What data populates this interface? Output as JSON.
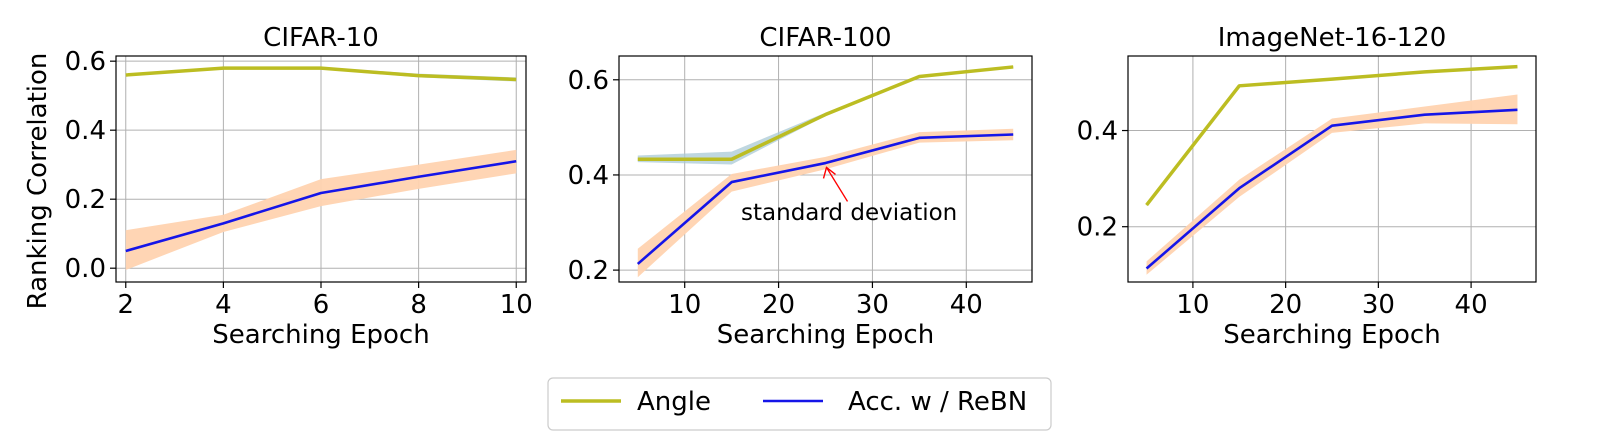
{
  "chart_data": [
    {
      "type": "line",
      "title": "CIFAR-10",
      "xlabel": "Searching Epoch",
      "ylabel": "Ranking Correlation",
      "xlim": [
        1.8,
        10.2
      ],
      "ylim": [
        -0.04,
        0.615
      ],
      "xticks": [
        2,
        4,
        6,
        8,
        10
      ],
      "yticks": [
        0.0,
        0.2,
        0.4,
        0.6
      ],
      "ytick_decimals": 1,
      "grid": true,
      "x": [
        2,
        4,
        6,
        8,
        10
      ],
      "series": [
        {
          "name": "Angle",
          "color": "#bcbd22",
          "values": [
            0.56,
            0.58,
            0.58,
            0.558,
            0.547
          ],
          "std_lower": [
            0.558,
            0.578,
            0.578,
            0.553,
            0.541
          ],
          "std_upper": [
            0.562,
            0.582,
            0.582,
            0.564,
            0.553
          ]
        },
        {
          "name": "Acc. w / ReBN",
          "color": "#1515e8",
          "values": [
            0.05,
            0.13,
            0.218,
            0.265,
            0.31
          ],
          "std_lower": [
            -0.005,
            0.105,
            0.18,
            0.23,
            0.275
          ],
          "std_upper": [
            0.11,
            0.155,
            0.258,
            0.3,
            0.343
          ]
        }
      ]
    },
    {
      "type": "line",
      "title": "CIFAR-100",
      "xlabel": "Searching Epoch",
      "ylabel": "",
      "xlim": [
        3,
        47
      ],
      "ylim": [
        0.175,
        0.65
      ],
      "xticks": [
        10,
        20,
        30,
        40
      ],
      "yticks": [
        0.2,
        0.4,
        0.6
      ],
      "ytick_decimals": 1,
      "grid": true,
      "x": [
        5,
        15,
        25,
        35,
        45
      ],
      "series": [
        {
          "name": "Angle",
          "color": "#bcbd22",
          "values": [
            0.433,
            0.433,
            0.527,
            0.607,
            0.627
          ],
          "std_lower": [
            0.427,
            0.422,
            0.524,
            0.605,
            0.625
          ],
          "std_upper": [
            0.441,
            0.449,
            0.531,
            0.609,
            0.629
          ]
        },
        {
          "name": "Acc. w / ReBN",
          "color": "#1515e8",
          "values": [
            0.213,
            0.385,
            0.425,
            0.478,
            0.485
          ],
          "std_lower": [
            0.185,
            0.365,
            0.412,
            0.468,
            0.473
          ],
          "std_upper": [
            0.245,
            0.402,
            0.438,
            0.49,
            0.497
          ]
        }
      ],
      "annotation": {
        "text": "standard deviation",
        "x": 25,
        "y": 0.42,
        "text_x": 16,
        "text_y": 0.305
      }
    },
    {
      "type": "line",
      "title": "ImageNet-16-120",
      "xlabel": "Searching Epoch",
      "ylabel": "",
      "xlim": [
        3,
        47
      ],
      "ylim": [
        0.085,
        0.555
      ],
      "xticks": [
        10,
        20,
        30,
        40
      ],
      "yticks": [
        0.2,
        0.4
      ],
      "ytick_decimals": 1,
      "grid": true,
      "x": [
        5,
        15,
        25,
        35,
        45
      ],
      "series": [
        {
          "name": "Angle",
          "color": "#bcbd22",
          "values": [
            0.245,
            0.493,
            0.507,
            0.522,
            0.533
          ],
          "std_lower": [
            0.243,
            0.491,
            0.505,
            0.52,
            0.531
          ],
          "std_upper": [
            0.247,
            0.495,
            0.509,
            0.524,
            0.535
          ]
        },
        {
          "name": "Acc. w / ReBN",
          "color": "#1515e8",
          "values": [
            0.113,
            0.28,
            0.41,
            0.433,
            0.443
          ],
          "std_lower": [
            0.1,
            0.262,
            0.395,
            0.415,
            0.413
          ],
          "std_upper": [
            0.128,
            0.298,
            0.425,
            0.45,
            0.475
          ]
        }
      ]
    }
  ],
  "legend": {
    "placement": "bottom-center",
    "entries": [
      {
        "label": "Angle",
        "color": "#bcbd22"
      },
      {
        "label": "Acc. w / ReBN",
        "color": "#1515e8"
      }
    ]
  },
  "band_color": "#ffd3b0",
  "angle_band_color": "#a9c9d6"
}
